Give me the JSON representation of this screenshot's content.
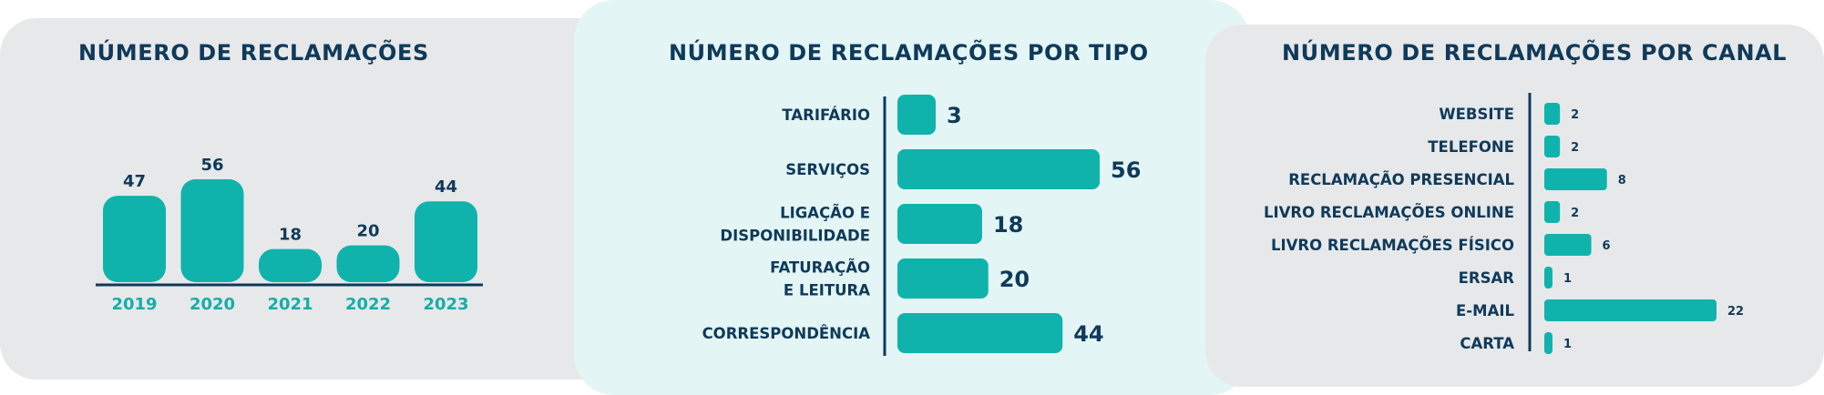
{
  "colors": {
    "bar": "#0fb3ab",
    "text": "#0f3a5a",
    "year_label": "#14aea8",
    "axis": "#0f3a5a"
  },
  "chart_data": [
    {
      "type": "bar",
      "title": "NÚMERO DE RECLAMAÇÕES",
      "orientation": "vertical",
      "categories": [
        "2019",
        "2020",
        "2021",
        "2022",
        "2023"
      ],
      "values": [
        47,
        56,
        18,
        20,
        44
      ],
      "ylim": [
        0,
        56
      ]
    },
    {
      "type": "bar",
      "title": "NÚMERO DE RECLAMAÇÕES POR TIPO",
      "orientation": "horizontal",
      "categories": [
        [
          "TARIFÁRIO"
        ],
        [
          "SERVIÇOS"
        ],
        [
          "LIGAÇÃO E",
          "DISPONIBILIDADE"
        ],
        [
          "FATURAÇÃO",
          "E LEITURA"
        ],
        [
          "CORRESPONDÊNCIA"
        ]
      ],
      "values": [
        3,
        56,
        18,
        20,
        44
      ],
      "bar_extent": [
        8,
        78
      ]
    },
    {
      "type": "bar",
      "title": "NÚMERO DE RECLAMAÇÕES POR CANAL",
      "orientation": "horizontal",
      "categories": [
        "WEBSITE",
        "TELEFONE",
        "RECLAMAÇÃO PRESENCIAL",
        "LIVRO RECLAMAÇÕES ONLINE",
        "LIVRO RECLAMAÇÕES FÍSICO",
        "ERSAR",
        "E-MAIL",
        "CARTA"
      ],
      "values": [
        2,
        2,
        8,
        2,
        6,
        1,
        22,
        1
      ],
      "xlim": [
        0,
        22
      ]
    }
  ]
}
